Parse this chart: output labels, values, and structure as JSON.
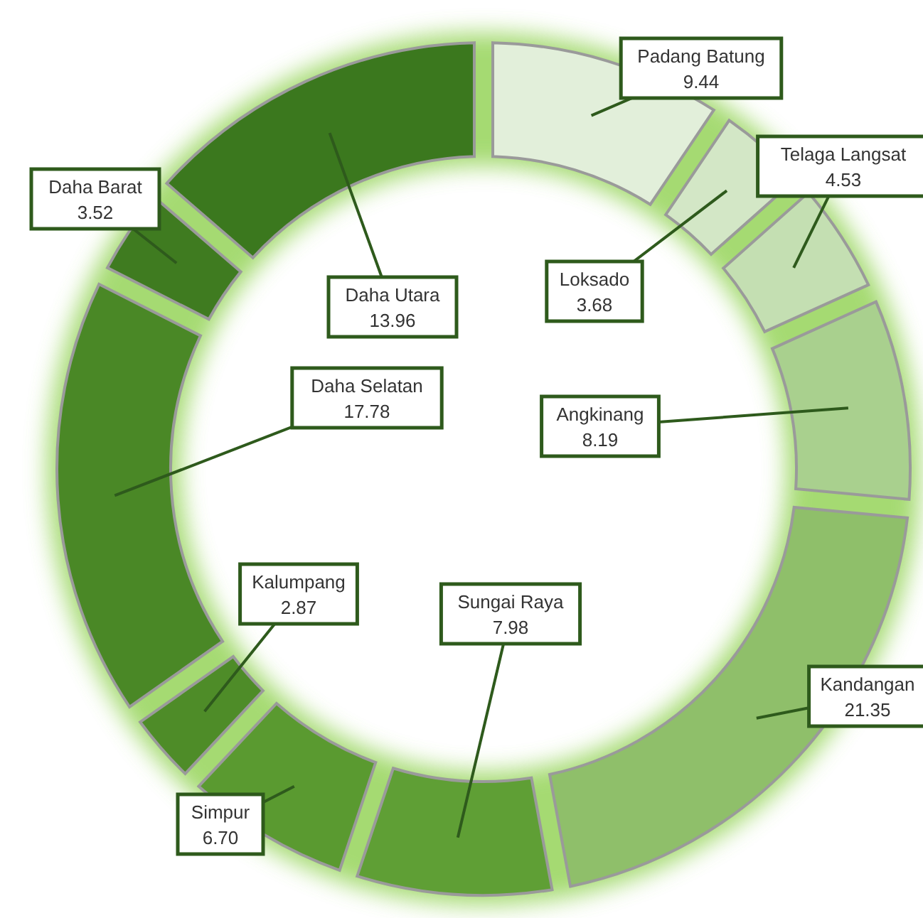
{
  "chart_data": {
    "type": "donut",
    "categories": [
      "Padang Batung",
      "Loksado",
      "Telaga Langsat",
      "Angkinang",
      "Kandangan",
      "Sungai Raya",
      "Simpur",
      "Kalumpang",
      "Daha Selatan",
      "Daha Barat",
      "Daha Utara"
    ],
    "values": [
      9.44,
      3.68,
      4.53,
      8.19,
      21.35,
      7.98,
      6.7,
      2.87,
      17.78,
      3.52,
      13.96
    ],
    "value_labels": [
      "9.44",
      "3.68",
      "4.53",
      "8.19",
      "21.35",
      "7.98",
      "6.70",
      "2.87",
      "17.78",
      "3.52",
      "13.96"
    ],
    "colors": [
      "#e2efda",
      "#d3e7c6",
      "#c4dfb2",
      "#a9d08e",
      "#8fbf6a",
      "#5f9f35",
      "#5a9a30",
      "#4e8c28",
      "#4a8826",
      "#3f7b20",
      "#3b781e"
    ]
  }
}
